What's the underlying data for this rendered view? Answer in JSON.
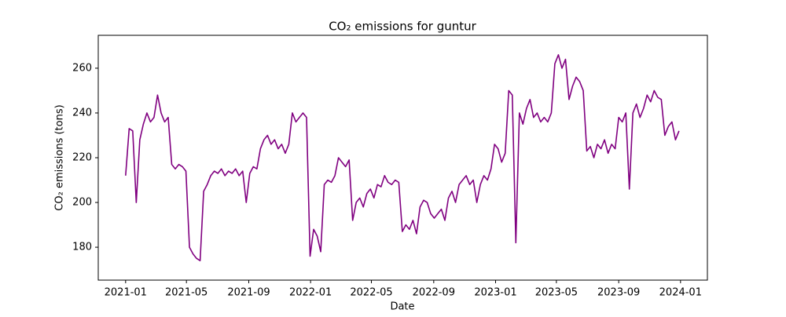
{
  "chart_data": {
    "type": "line",
    "title": "CO₂ emissions for guntur",
    "x_label": "Date",
    "y_label": "CO₂ emissions (tons)",
    "x": [
      0,
      7,
      14,
      21,
      28,
      35,
      42,
      49,
      56,
      63,
      70,
      77,
      84,
      91,
      98,
      105,
      112,
      119,
      126,
      133,
      140,
      147,
      154,
      161,
      168,
      175,
      182,
      189,
      196,
      203,
      210,
      217,
      224,
      231,
      238,
      245,
      252,
      259,
      266,
      273,
      280,
      287,
      294,
      301,
      308,
      315,
      322,
      329,
      336,
      343,
      350,
      357,
      364,
      371,
      378,
      385,
      392,
      399,
      406,
      413,
      420,
      427,
      434,
      441,
      448,
      455,
      462,
      469,
      476,
      483,
      490,
      497,
      504,
      511,
      518,
      525,
      532,
      539,
      546,
      553,
      560,
      567,
      574,
      581,
      588,
      595,
      602,
      609,
      616,
      623,
      630,
      637,
      644,
      651,
      658,
      665,
      672,
      679,
      686,
      693,
      700,
      707,
      714,
      721,
      728,
      735,
      742,
      749,
      756,
      763,
      770,
      777,
      784,
      791,
      798,
      805,
      812,
      819,
      826,
      833,
      840,
      847,
      854,
      861,
      868,
      875,
      882,
      889,
      896,
      903,
      910,
      917,
      924,
      931,
      938,
      945,
      952,
      959,
      966,
      973,
      980,
      987,
      994,
      1001,
      1008,
      1015,
      1022,
      1029,
      1036,
      1043,
      1050,
      1057,
      1064,
      1071,
      1078,
      1085,
      1092
    ],
    "values": [
      212,
      233,
      232,
      200,
      228,
      235,
      240,
      236,
      238,
      248,
      240,
      236,
      238,
      217,
      215,
      217,
      216,
      214,
      180,
      177,
      175,
      174,
      205,
      208,
      212,
      214,
      213,
      215,
      212,
      214,
      213,
      215,
      212,
      214,
      200,
      213,
      216,
      215,
      224,
      228,
      230,
      226,
      228,
      224,
      226,
      222,
      226,
      240,
      236,
      238,
      240,
      238,
      176,
      188,
      185,
      178,
      208,
      210,
      209,
      212,
      220,
      218,
      216,
      219,
      192,
      200,
      202,
      198,
      204,
      206,
      202,
      208,
      207,
      212,
      209,
      208,
      210,
      209,
      187,
      190,
      188,
      192,
      186,
      198,
      201,
      200,
      195,
      193,
      195,
      197,
      192,
      202,
      205,
      200,
      208,
      210,
      212,
      208,
      210,
      200,
      208,
      212,
      210,
      215,
      226,
      224,
      218,
      222,
      250,
      248,
      182,
      240,
      235,
      242,
      246,
      238,
      240,
      236,
      238,
      236,
      240,
      262,
      266,
      260,
      264,
      246,
      252,
      256,
      254,
      250,
      223,
      225,
      220,
      226,
      224,
      228,
      222,
      226,
      224,
      238,
      236,
      240,
      206,
      240,
      244,
      238,
      242,
      248,
      245,
      250,
      247,
      246,
      230,
      234,
      236,
      228,
      232
    ],
    "color": "#800080",
    "xlim": [
      -54,
      1148
    ],
    "xticks": [
      {
        "value": 0,
        "label": "2021-01"
      },
      {
        "value": 120,
        "label": "2021-05"
      },
      {
        "value": 243,
        "label": "2021-09"
      },
      {
        "value": 365,
        "label": "2022-01"
      },
      {
        "value": 485,
        "label": "2022-05"
      },
      {
        "value": 608,
        "label": "2022-09"
      },
      {
        "value": 730,
        "label": "2023-01"
      },
      {
        "value": 850,
        "label": "2023-05"
      },
      {
        "value": 973,
        "label": "2023-09"
      },
      {
        "value": 1095,
        "label": "2024-01"
      }
    ],
    "ylim": [
      165.3,
      274.7
    ],
    "yticks": [
      180,
      200,
      220,
      240,
      260
    ],
    "grid": false
  }
}
